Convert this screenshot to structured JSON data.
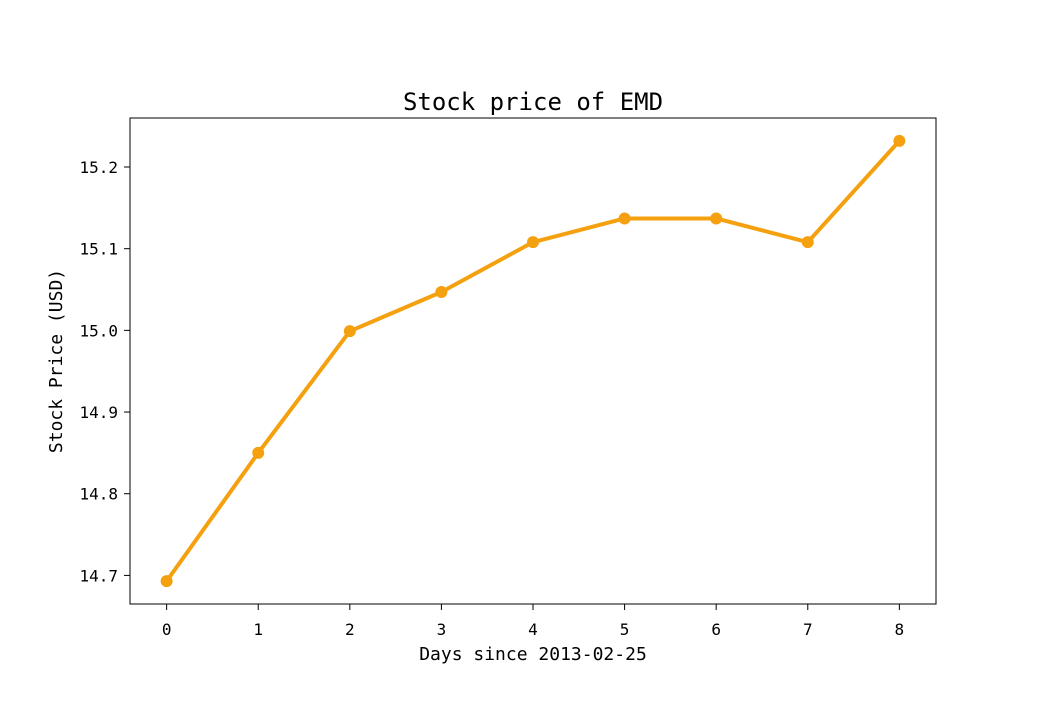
{
  "chart_data": {
    "type": "line",
    "title": "Stock price of EMD",
    "xlabel": "Days since 2013-02-25",
    "ylabel": "Stock Price (USD)",
    "x": [
      0,
      1,
      2,
      3,
      4,
      5,
      6,
      7,
      8
    ],
    "series": [
      {
        "values": [
          14.693,
          14.85,
          14.999,
          15.047,
          15.108,
          15.137,
          15.137,
          15.108,
          15.232
        ],
        "color": "#f5a10f"
      }
    ],
    "xlim": [
      -0.4,
      8.4
    ],
    "ylim": [
      14.665,
      15.26
    ],
    "xticks": [
      0,
      1,
      2,
      3,
      4,
      5,
      6,
      7,
      8
    ],
    "yticks": [
      14.7,
      14.8,
      14.9,
      15.0,
      15.1,
      15.2
    ],
    "ytick_labels": [
      "14.7",
      "14.8",
      "14.9",
      "15.0",
      "15.1",
      "15.2"
    ],
    "grid": false,
    "legend": "none"
  }
}
